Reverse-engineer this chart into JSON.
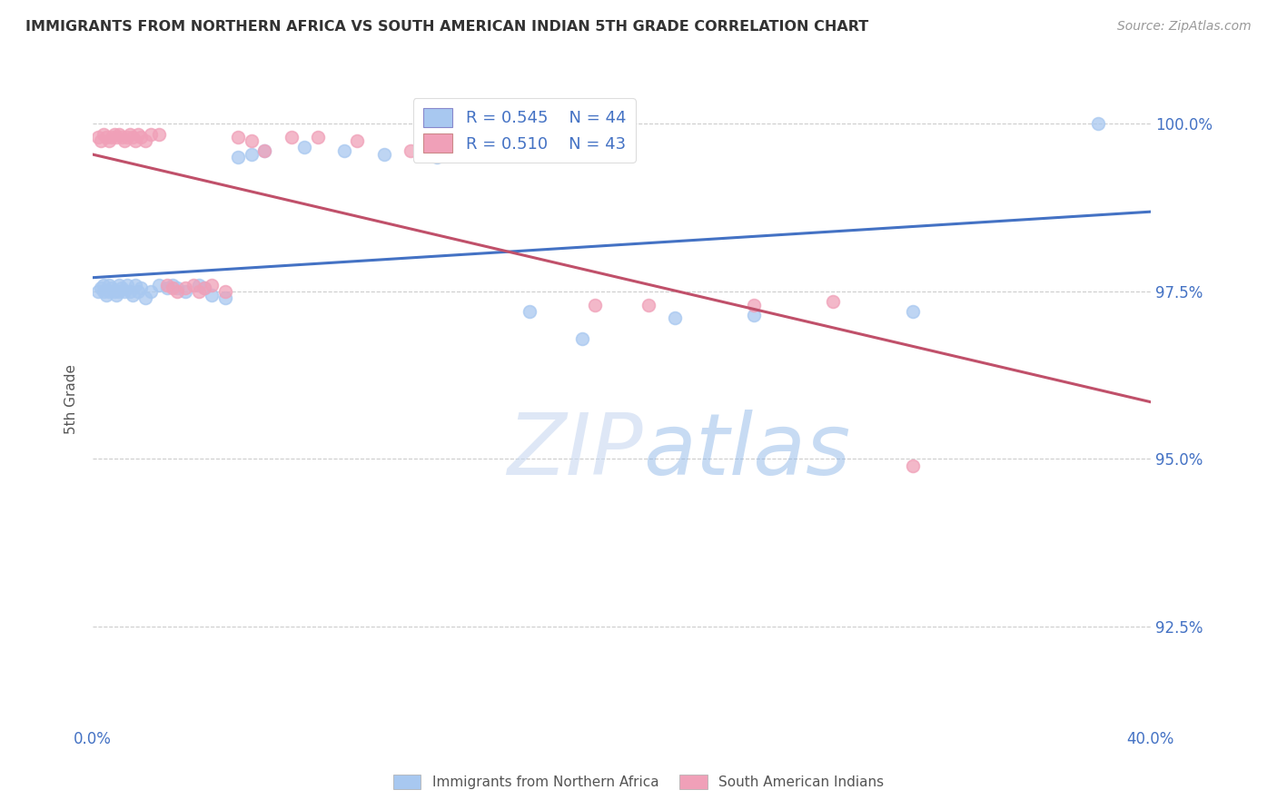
{
  "title": "IMMIGRANTS FROM NORTHERN AFRICA VS SOUTH AMERICAN INDIAN 5TH GRADE CORRELATION CHART",
  "source": "Source: ZipAtlas.com",
  "ylabel": "5th Grade",
  "yaxis_labels": [
    "100.0%",
    "97.5%",
    "95.0%",
    "92.5%"
  ],
  "yaxis_values": [
    1.0,
    0.975,
    0.95,
    0.925
  ],
  "x_min": 0.0,
  "x_max": 0.4,
  "y_min": 0.91,
  "y_max": 1.008,
  "legend_blue_R": "0.545",
  "legend_blue_N": "44",
  "legend_pink_R": "0.510",
  "legend_pink_N": "43",
  "legend_label_blue": "Immigrants from Northern Africa",
  "legend_label_pink": "South American Indians",
  "watermark_zip": "ZIP",
  "watermark_atlas": "atlas",
  "blue_color": "#A8C8F0",
  "pink_color": "#F0A0B8",
  "trendline_blue": "#4472C4",
  "trendline_pink": "#C0506A",
  "blue_scatter_x": [
    0.002,
    0.003,
    0.004,
    0.004,
    0.005,
    0.006,
    0.006,
    0.007,
    0.008,
    0.009,
    0.01,
    0.01,
    0.011,
    0.012,
    0.013,
    0.014,
    0.015,
    0.016,
    0.017,
    0.018,
    0.02,
    0.022,
    0.025,
    0.028,
    0.03,
    0.032,
    0.035,
    0.04,
    0.042,
    0.045,
    0.05,
    0.055,
    0.06,
    0.065,
    0.08,
    0.095,
    0.11,
    0.13,
    0.165,
    0.185,
    0.22,
    0.25,
    0.31,
    0.38
  ],
  "blue_scatter_y": [
    0.975,
    0.9755,
    0.976,
    0.975,
    0.9745,
    0.975,
    0.976,
    0.9755,
    0.975,
    0.9745,
    0.975,
    0.976,
    0.9755,
    0.975,
    0.976,
    0.975,
    0.9745,
    0.976,
    0.975,
    0.9755,
    0.974,
    0.975,
    0.976,
    0.9755,
    0.976,
    0.9755,
    0.975,
    0.976,
    0.9755,
    0.9745,
    0.974,
    0.995,
    0.9955,
    0.996,
    0.9965,
    0.996,
    0.9955,
    0.995,
    0.972,
    0.968,
    0.971,
    0.9715,
    0.972,
    1.0
  ],
  "pink_scatter_x": [
    0.002,
    0.003,
    0.004,
    0.005,
    0.006,
    0.007,
    0.008,
    0.009,
    0.01,
    0.011,
    0.012,
    0.013,
    0.014,
    0.015,
    0.016,
    0.017,
    0.018,
    0.02,
    0.022,
    0.025,
    0.028,
    0.03,
    0.032,
    0.035,
    0.038,
    0.04,
    0.042,
    0.045,
    0.05,
    0.055,
    0.06,
    0.065,
    0.075,
    0.085,
    0.1,
    0.12,
    0.15,
    0.175,
    0.19,
    0.21,
    0.25,
    0.28,
    0.31
  ],
  "pink_scatter_y": [
    0.998,
    0.9975,
    0.9985,
    0.998,
    0.9975,
    0.998,
    0.9985,
    0.998,
    0.9985,
    0.998,
    0.9975,
    0.998,
    0.9985,
    0.998,
    0.9975,
    0.9985,
    0.998,
    0.9975,
    0.9985,
    0.9985,
    0.976,
    0.9755,
    0.975,
    0.9755,
    0.976,
    0.975,
    0.9755,
    0.976,
    0.975,
    0.998,
    0.9975,
    0.996,
    0.998,
    0.998,
    0.9975,
    0.996,
    0.9955,
    0.996,
    0.973,
    0.973,
    0.973,
    0.9735,
    0.949
  ]
}
